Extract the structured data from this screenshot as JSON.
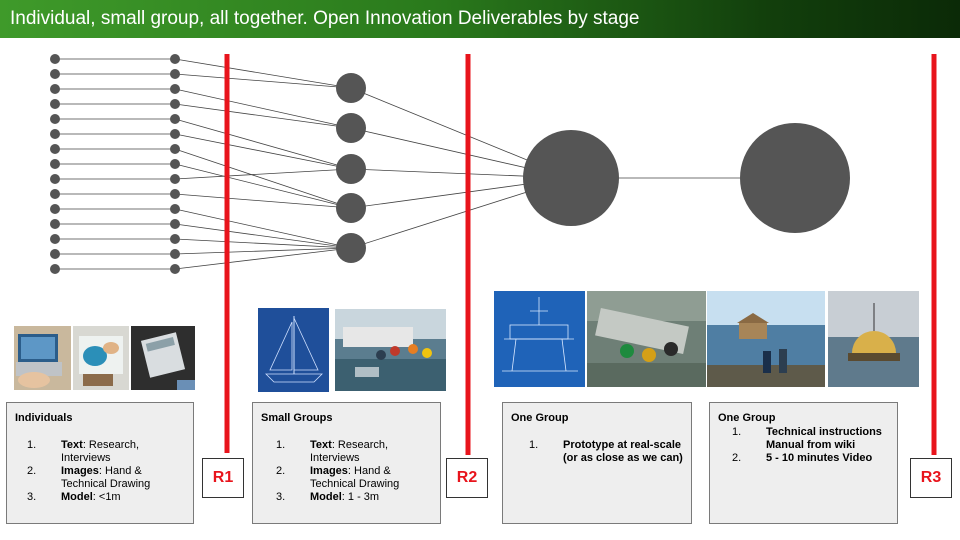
{
  "title": "Individual, small group, all together. Open Innovation Deliverables by stage",
  "colors": {
    "title_bar": "#2a7a1c",
    "node": "#555555",
    "stage_line": "#e8141c",
    "label": "#e8141c",
    "box_bg": "#eeeeee"
  },
  "stages": [
    {
      "label": "R1"
    },
    {
      "label": "R2"
    },
    {
      "label": "R3"
    }
  ],
  "boxes": [
    {
      "heading": "Individuals",
      "items": [
        {
          "num": "1.",
          "bold": "Text",
          "rest": ": Research, Interviews"
        },
        {
          "num": "2.",
          "bold": "Images",
          "rest": ": Hand & Technical Drawing"
        },
        {
          "num": "3.",
          "bold": "Model",
          "rest": ": <1m"
        }
      ]
    },
    {
      "heading": "Small Groups",
      "items": [
        {
          "num": "1.",
          "bold": "Text",
          "rest": ": Research, Interviews"
        },
        {
          "num": "2.",
          "bold": "Images",
          "rest": ": Hand & Technical Drawing"
        },
        {
          "num": "3.",
          "bold": "Model",
          "rest": ": 1 - 3m"
        }
      ]
    },
    {
      "heading": "One Group",
      "items": [
        {
          "num": "1.",
          "bold": "Prototype at real-scale (or as close as we can)",
          "rest": ""
        }
      ]
    },
    {
      "heading": "One Group",
      "items": [
        {
          "num": "1.",
          "bold": "Technical instructions Manual from wiki",
          "rest": ""
        },
        {
          "num": "2.",
          "bold": "5 - 10 minutes Video",
          "rest": ""
        }
      ]
    }
  ],
  "photos": [
    {
      "name": "laptop-photo"
    },
    {
      "name": "drawing-hands-photo"
    },
    {
      "name": "calculator-photo"
    },
    {
      "name": "sailboat-blueprint-photo"
    },
    {
      "name": "boat-crowd-photo"
    },
    {
      "name": "oil-platform-blueprint-photo"
    },
    {
      "name": "group-building-raft-photo"
    },
    {
      "name": "floating-hut-photo"
    },
    {
      "name": "dome-boat-photo"
    }
  ]
}
